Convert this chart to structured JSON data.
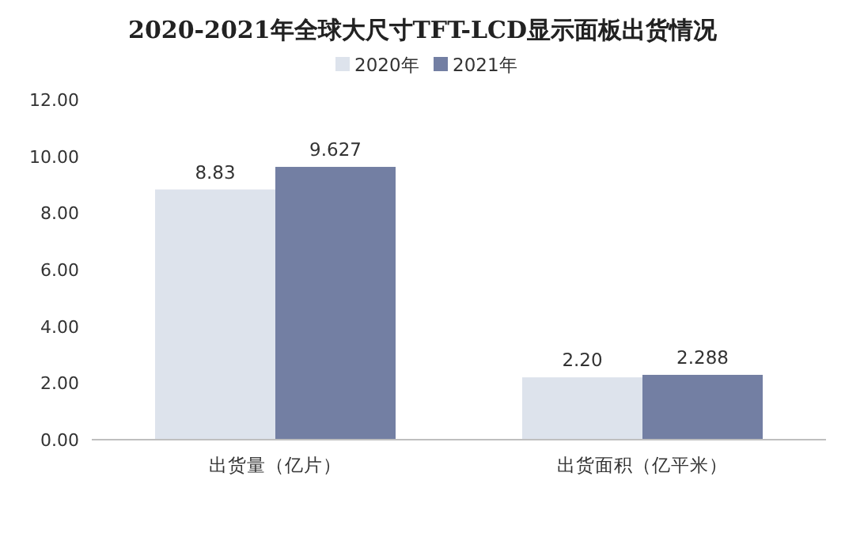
{
  "chart_data": {
    "type": "bar",
    "title": "2020-2021年全球大尺寸TFT-LCD显示面板出货情况",
    "categories": [
      "出货量（亿片）",
      "出货面积（亿平米）"
    ],
    "series": [
      {
        "name": "2020年",
        "color": "#dde3ec",
        "values": [
          8.83,
          2.2
        ],
        "value_labels": [
          "8.83",
          "2.20"
        ]
      },
      {
        "name": "2021年",
        "color": "#737fa3",
        "values": [
          9.627,
          2.288
        ],
        "value_labels": [
          "9.627",
          "2.288"
        ]
      }
    ],
    "ylim": [
      0,
      12
    ],
    "yticks": [
      {
        "value": 0,
        "label": "0.00"
      },
      {
        "value": 2,
        "label": "2.00"
      },
      {
        "value": 4,
        "label": "4.00"
      },
      {
        "value": 6,
        "label": "6.00"
      },
      {
        "value": 8,
        "label": "8.00"
      },
      {
        "value": 10,
        "label": "10.00"
      },
      {
        "value": 12,
        "label": "12.00"
      }
    ],
    "legend": "top",
    "grid": false
  }
}
